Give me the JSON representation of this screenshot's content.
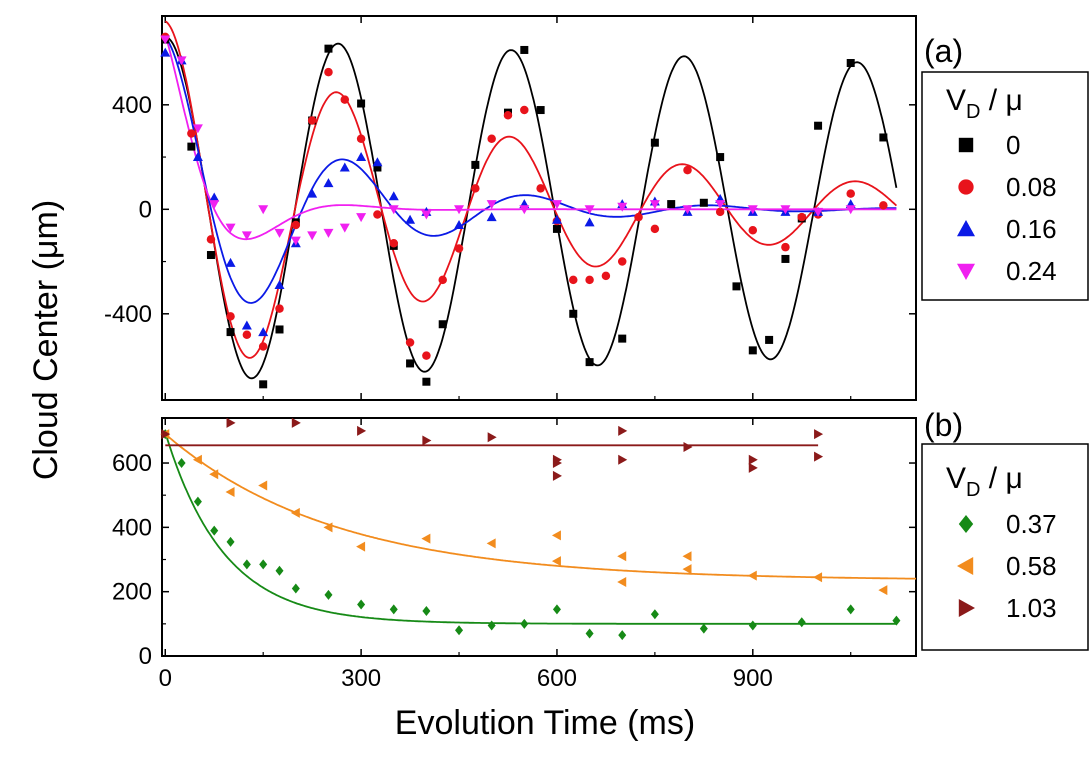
{
  "figure": {
    "ylabel": "Cloud Center (μm)",
    "xlabel": "Evolution Time (ms)"
  },
  "legend_a": {
    "title_main": "V",
    "title_sub": "D",
    "title_rest": " / μ"
  },
  "legend_b": {
    "title_main": "V",
    "title_sub": "D",
    "title_rest": " / μ"
  },
  "chart_data": [
    {
      "panel": "(a)",
      "type": "scatter",
      "xlabel": "Evolution Time (ms)",
      "ylabel": "Cloud Center (μm)",
      "xlim": [
        -5,
        1150
      ],
      "ylim": [
        -730,
        740
      ],
      "yticks": [
        -400,
        0,
        400
      ],
      "yticklabels": [
        "-400",
        "0",
        "400"
      ],
      "series": [
        {
          "name": "0",
          "color": "#000000",
          "marker": "square",
          "fit": {
            "A": 660,
            "damp": 0.00015,
            "period": 265,
            "phase": 0,
            "offset": 0
          },
          "x": [
            0,
            40,
            70,
            100,
            150,
            175,
            200,
            225,
            250,
            300,
            325,
            350,
            375,
            400,
            425,
            475,
            525,
            550,
            575,
            600,
            625,
            650,
            700,
            750,
            775,
            825,
            850,
            875,
            900,
            925,
            950,
            975,
            1000,
            1050,
            1100
          ],
          "y": [
            650,
            240,
            -175,
            -470,
            -670,
            -460,
            -50,
            340,
            615,
            405,
            160,
            -140,
            -590,
            -660,
            -440,
            170,
            370,
            610,
            380,
            -75,
            -400,
            -585,
            -495,
            255,
            20,
            25,
            200,
            -295,
            -540,
            -500,
            -190,
            -35,
            320,
            560,
            275
          ]
        },
        {
          "name": "0.08",
          "color": "#e8131b",
          "marker": "circle",
          "fit": {
            "A": 720,
            "damp": 0.0018,
            "period": 265,
            "phase": 0,
            "offset": 0
          },
          "x": [
            0,
            40,
            70,
            100,
            125,
            150,
            175,
            200,
            225,
            250,
            275,
            300,
            325,
            350,
            375,
            400,
            425,
            450,
            475,
            500,
            525,
            550,
            575,
            600,
            625,
            650,
            675,
            700,
            725,
            750,
            800,
            850,
            900,
            950,
            975,
            1000,
            1050,
            1100
          ],
          "y": [
            660,
            290,
            -115,
            -410,
            -480,
            -525,
            -380,
            -60,
            340,
            525,
            420,
            270,
            -20,
            -130,
            -510,
            -560,
            -270,
            -150,
            80,
            270,
            360,
            380,
            80,
            -45,
            -270,
            -270,
            -255,
            -200,
            -30,
            -75,
            150,
            -10,
            -80,
            -145,
            -30,
            -20,
            60,
            15
          ]
        },
        {
          "name": "0.16",
          "color": "#0b1ae6",
          "marker": "triangle-up",
          "fit": {
            "A": 660,
            "damp": 0.0045,
            "period": 280,
            "phase": 0,
            "offset": 0
          },
          "x": [
            0,
            25,
            50,
            75,
            100,
            125,
            150,
            175,
            200,
            225,
            250,
            275,
            300,
            325,
            350,
            375,
            400,
            450,
            500,
            550,
            600,
            650,
            700,
            750,
            800,
            850,
            900,
            950,
            1000,
            1050
          ],
          "y": [
            600,
            570,
            200,
            45,
            -205,
            -445,
            -470,
            -290,
            -130,
            60,
            100,
            160,
            200,
            180,
            50,
            -40,
            -10,
            -60,
            -30,
            20,
            -40,
            -50,
            20,
            30,
            -10,
            40,
            -10,
            -10,
            -10,
            20
          ]
        },
        {
          "name": "0.24",
          "color": "#f020f0",
          "marker": "triangle-down",
          "fit": {
            "A": 670,
            "damp": 0.013,
            "period": 300,
            "phase": 0,
            "offset": 0
          },
          "x": [
            0,
            25,
            50,
            75,
            100,
            125,
            150,
            175,
            200,
            225,
            250,
            275,
            300,
            350,
            400,
            450,
            500,
            550,
            600,
            650,
            700,
            750,
            800,
            850,
            900,
            950,
            1000,
            1050
          ],
          "y": [
            650,
            570,
            310,
            20,
            -70,
            -100,
            0,
            -90,
            -120,
            -100,
            -90,
            -70,
            -30,
            0,
            -20,
            0,
            20,
            0,
            20,
            0,
            10,
            20,
            0,
            20,
            0,
            0,
            -10,
            0
          ]
        }
      ]
    },
    {
      "panel": "(b)",
      "type": "scatter",
      "xlabel": "Evolution Time (ms)",
      "ylabel": "Cloud Center (μm)",
      "xlim": [
        -5,
        1150
      ],
      "ylim": [
        0,
        740
      ],
      "yticks": [
        0,
        200,
        400,
        600
      ],
      "yticklabels": [
        "0",
        "200",
        "400",
        "600"
      ],
      "xticks": [
        0,
        300,
        600,
        900
      ],
      "xticklabels": [
        "0",
        "300",
        "600",
        "900"
      ],
      "series": [
        {
          "name": "0.37",
          "color": "#168a16",
          "marker": "diamond",
          "fit": {
            "type": "exp",
            "y0": 100,
            "A": 595,
            "tau": 90,
            "x_end": 1120
          },
          "x": [
            0,
            25,
            50,
            75,
            100,
            125,
            150,
            175,
            200,
            250,
            300,
            350,
            400,
            450,
            500,
            550,
            600,
            650,
            700,
            750,
            825,
            900,
            975,
            1050,
            1120
          ],
          "y": [
            690,
            600,
            480,
            390,
            355,
            285,
            285,
            265,
            210,
            190,
            160,
            145,
            140,
            80,
            95,
            100,
            145,
            70,
            65,
            130,
            85,
            95,
            105,
            145,
            110
          ]
        },
        {
          "name": "0.58",
          "color": "#f28c1e",
          "marker": "triangle-left",
          "fit": {
            "type": "exp",
            "y0": 235,
            "A": 455,
            "tau": 260,
            "x_end": 1150
          },
          "x": [
            0,
            50,
            75,
            100,
            150,
            200,
            250,
            300,
            400,
            500,
            600,
            600,
            700,
            700,
            800,
            800,
            900,
            1000,
            1100
          ],
          "y": [
            690,
            610,
            565,
            510,
            530,
            445,
            400,
            340,
            365,
            350,
            375,
            295,
            230,
            310,
            310,
            270,
            250,
            245,
            205
          ]
        },
        {
          "name": "1.03",
          "color": "#8b1a1a",
          "marker": "triangle-right",
          "fit": {
            "type": "flat",
            "y0": 655,
            "x_start": 0,
            "x_end": 1000
          },
          "x": [
            0,
            100,
            200,
            300,
            400,
            500,
            600,
            600,
            600,
            700,
            700,
            800,
            900,
            900,
            1000,
            1000
          ],
          "y": [
            690,
            725,
            725,
            700,
            670,
            680,
            610,
            600,
            560,
            700,
            610,
            650,
            610,
            585,
            690,
            620
          ]
        }
      ]
    }
  ]
}
